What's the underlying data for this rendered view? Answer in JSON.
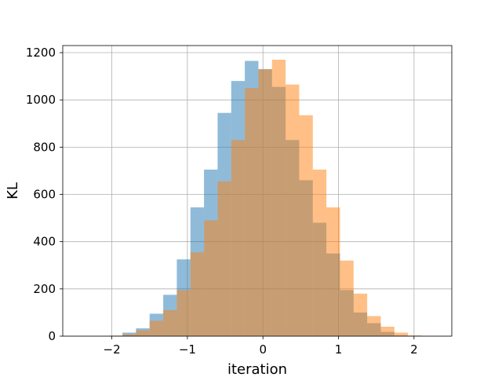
{
  "chart_data": {
    "type": "bar",
    "title": "",
    "xlabel": "iteration",
    "ylabel": "KL",
    "xlim": [
      -2.65,
      2.5
    ],
    "ylim": [
      0,
      1230
    ],
    "xticks": [
      -2,
      -1,
      0,
      1,
      2
    ],
    "xtick_labels": [
      "−2",
      "−1",
      "0",
      "1",
      "2"
    ],
    "yticks": [
      0,
      200,
      400,
      600,
      800,
      1000,
      1200
    ],
    "ytick_labels": [
      "0",
      "200",
      "400",
      "600",
      "800",
      "1000",
      "1200"
    ],
    "grid": true,
    "series": [
      {
        "color": "#1f77b4",
        "alpha": 0.5,
        "bins": [
          {
            "x0": -2.04,
            "x1": -1.86,
            "count": 2
          },
          {
            "x0": -1.86,
            "x1": -1.68,
            "count": 15
          },
          {
            "x0": -1.68,
            "x1": -1.5,
            "count": 33
          },
          {
            "x0": -1.5,
            "x1": -1.32,
            "count": 95
          },
          {
            "x0": -1.32,
            "x1": -1.14,
            "count": 175
          },
          {
            "x0": -1.14,
            "x1": -0.96,
            "count": 325
          },
          {
            "x0": -0.96,
            "x1": -0.78,
            "count": 545
          },
          {
            "x0": -0.78,
            "x1": -0.6,
            "count": 705
          },
          {
            "x0": -0.6,
            "x1": -0.42,
            "count": 945
          },
          {
            "x0": -0.42,
            "x1": -0.24,
            "count": 1080
          },
          {
            "x0": -0.24,
            "x1": -0.06,
            "count": 1165
          },
          {
            "x0": -0.06,
            "x1": 0.12,
            "count": 1130
          },
          {
            "x0": 0.12,
            "x1": 0.3,
            "count": 1055
          },
          {
            "x0": 0.3,
            "x1": 0.48,
            "count": 830
          },
          {
            "x0": 0.48,
            "x1": 0.66,
            "count": 660
          },
          {
            "x0": 0.66,
            "x1": 0.84,
            "count": 480
          },
          {
            "x0": 0.84,
            "x1": 1.02,
            "count": 350
          },
          {
            "x0": 1.02,
            "x1": 1.2,
            "count": 195
          },
          {
            "x0": 1.2,
            "x1": 1.38,
            "count": 100
          },
          {
            "x0": 1.38,
            "x1": 1.56,
            "count": 55
          },
          {
            "x0": 1.56,
            "x1": 1.74,
            "count": 18
          },
          {
            "x0": 1.74,
            "x1": 1.92,
            "count": 3
          }
        ]
      },
      {
        "color": "#ff7f0e",
        "alpha": 0.5,
        "bins": [
          {
            "x0": -2.04,
            "x1": -1.86,
            "count": 2
          },
          {
            "x0": -1.86,
            "x1": -1.68,
            "count": 8
          },
          {
            "x0": -1.68,
            "x1": -1.5,
            "count": 25
          },
          {
            "x0": -1.5,
            "x1": -1.32,
            "count": 65
          },
          {
            "x0": -1.32,
            "x1": -1.14,
            "count": 110
          },
          {
            "x0": -1.14,
            "x1": -0.96,
            "count": 195
          },
          {
            "x0": -0.96,
            "x1": -0.78,
            "count": 355
          },
          {
            "x0": -0.78,
            "x1": -0.6,
            "count": 490
          },
          {
            "x0": -0.6,
            "x1": -0.42,
            "count": 655
          },
          {
            "x0": -0.42,
            "x1": -0.24,
            "count": 830
          },
          {
            "x0": -0.24,
            "x1": -0.06,
            "count": 1050
          },
          {
            "x0": -0.06,
            "x1": 0.12,
            "count": 1130
          },
          {
            "x0": 0.12,
            "x1": 0.3,
            "count": 1170
          },
          {
            "x0": 0.3,
            "x1": 0.48,
            "count": 1065
          },
          {
            "x0": 0.48,
            "x1": 0.66,
            "count": 935
          },
          {
            "x0": 0.66,
            "x1": 0.84,
            "count": 705
          },
          {
            "x0": 0.84,
            "x1": 1.02,
            "count": 545
          },
          {
            "x0": 1.02,
            "x1": 1.2,
            "count": 320
          },
          {
            "x0": 1.2,
            "x1": 1.38,
            "count": 180
          },
          {
            "x0": 1.38,
            "x1": 1.56,
            "count": 85
          },
          {
            "x0": 1.56,
            "x1": 1.74,
            "count": 40
          },
          {
            "x0": 1.74,
            "x1": 1.92,
            "count": 15
          },
          {
            "x0": 1.92,
            "x1": 2.1,
            "count": 3
          }
        ]
      }
    ]
  }
}
